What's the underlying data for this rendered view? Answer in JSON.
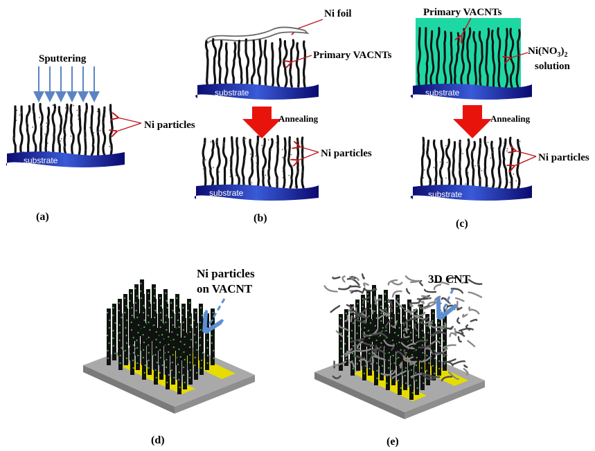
{
  "labels": {
    "sputtering": "Sputtering",
    "substrate": "substrate",
    "ni_particles": "Ni particles",
    "ni_foil": "Ni foil",
    "primary_vacnts": "Primary VACNTs",
    "annealing": "Annealing",
    "nitrate_prefix": "Ni(NO",
    "nitrate_sub3": "3",
    "nitrate_close": ")",
    "nitrate_sub2": "2",
    "solution": "solution",
    "ni_particles_line1": "Ni particles",
    "on_vacnt": "on VACNT",
    "cnt_3d": "3D CNT"
  },
  "panels": {
    "a": "(a)",
    "b": "(b)",
    "c": "(c)",
    "d": "(d)",
    "e": "(e)"
  },
  "colors": {
    "substrate_dark": "#0a0a6e",
    "substrate_light": "#3a5ad8",
    "arrow_red": "#e8140c",
    "sputter_arrow": "#5b84c4",
    "solution_teal": "#1ed8a4",
    "dashed_arrow": "#5c8fd6",
    "plate_gray": "#a9a9a9",
    "electrode_yellow": "#e6dc00",
    "cnt_black": "#111111",
    "ni_green": "#3fae3f"
  }
}
